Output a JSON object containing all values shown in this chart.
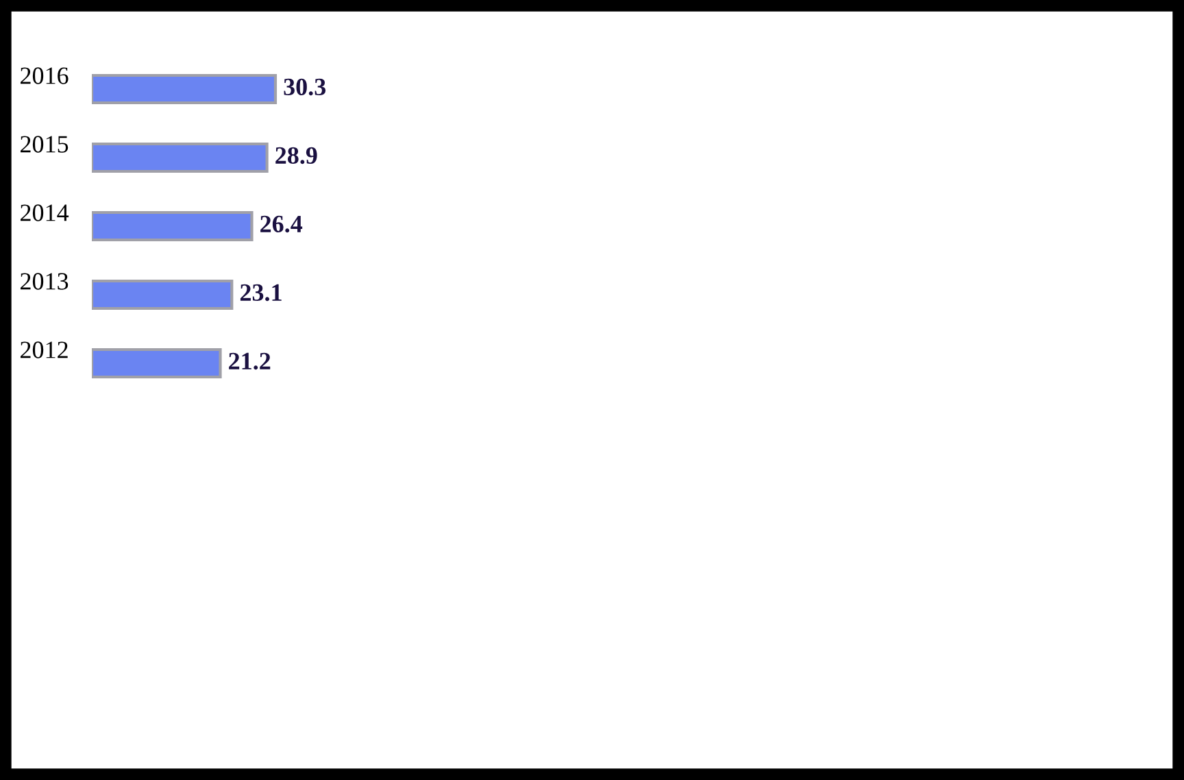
{
  "chart_data": {
    "type": "bar",
    "orientation": "horizontal",
    "categories": [
      "2016",
      "2015",
      "2014",
      "2013",
      "2012"
    ],
    "values": [
      30.3,
      28.9,
      26.4,
      23.1,
      21.2
    ],
    "color": "#6a84f2",
    "data_labels": true,
    "grid": false,
    "legend": false
  }
}
